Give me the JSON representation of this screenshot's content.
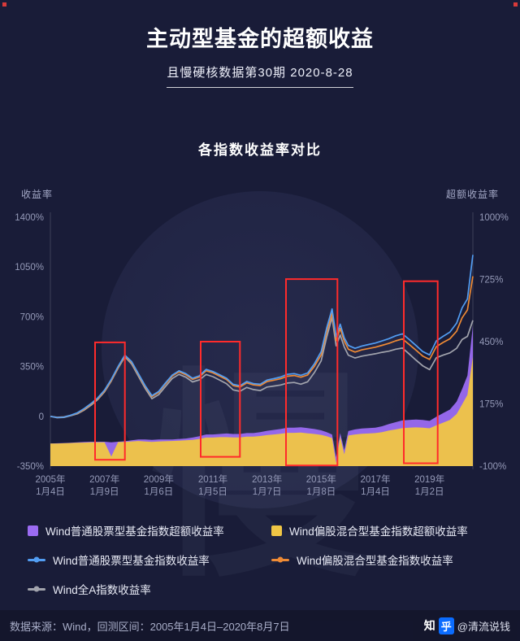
{
  "header": {
    "title": "主动型基金的超额收益",
    "subtitle": "且慢硬核数据第30期 2020-8-28"
  },
  "watermark": {
    "glyph": "慢"
  },
  "accents": {
    "corner_marker": "#d93a3a",
    "zhihu_blue": "#0b6cff"
  },
  "chart_data": {
    "type": "line",
    "title": "各指数收益率对比",
    "grid": false,
    "legend_position": "bottom",
    "x_range": [
      2005,
      2020.6
    ],
    "left_axis": {
      "title": "收益率",
      "unit": "%",
      "range": [
        -350,
        1400
      ],
      "ticks": [
        1400,
        1050,
        700,
        350,
        0,
        -350
      ]
    },
    "right_axis": {
      "title": "超额收益率",
      "unit": "%",
      "range": [
        -100,
        1000
      ],
      "ticks": [
        1000,
        725,
        450,
        175,
        -100
      ]
    },
    "area_baseline_right": -100,
    "x_ticks": [
      {
        "year": 2005,
        "label": [
          "2005年",
          "1月4日"
        ]
      },
      {
        "year": 2007,
        "label": [
          "2007年",
          "1月9日"
        ]
      },
      {
        "year": 2009,
        "label": [
          "2009年",
          "1月6日"
        ]
      },
      {
        "year": 2011,
        "label": [
          "2011年",
          "1月5日"
        ]
      },
      {
        "year": 2013,
        "label": [
          "2013年",
          "1月7日"
        ]
      },
      {
        "year": 2015,
        "label": [
          "2015年",
          "1月8日"
        ]
      },
      {
        "year": 2017,
        "label": [
          "2017年",
          "1月4日"
        ]
      },
      {
        "year": 2019,
        "label": [
          "2019年",
          "1月2日"
        ]
      }
    ],
    "x_years": [
      2005.0,
      2005.25,
      2005.5,
      2005.75,
      2006.0,
      2006.25,
      2006.5,
      2006.75,
      2007.0,
      2007.25,
      2007.5,
      2007.75,
      2008.0,
      2008.25,
      2008.5,
      2008.75,
      2009.0,
      2009.25,
      2009.5,
      2009.75,
      2010.0,
      2010.25,
      2010.5,
      2010.75,
      2011.0,
      2011.25,
      2011.5,
      2011.75,
      2012.0,
      2012.25,
      2012.5,
      2012.75,
      2013.0,
      2013.25,
      2013.5,
      2013.75,
      2014.0,
      2014.25,
      2014.5,
      2014.75,
      2015.0,
      2015.2,
      2015.4,
      2015.55,
      2015.7,
      2015.85,
      2016.0,
      2016.25,
      2016.5,
      2016.75,
      2017.0,
      2017.25,
      2017.5,
      2017.75,
      2018.0,
      2018.25,
      2018.5,
      2018.75,
      2019.0,
      2019.25,
      2019.5,
      2019.75,
      2020.0,
      2020.2,
      2020.4,
      2020.6
    ],
    "series": [
      {
        "name": "Wind普通股票型基金指数超额收益率",
        "type": "area",
        "axis": "right",
        "color": "#9b6bf2",
        "values": [
          0,
          1,
          2,
          3,
          5,
          7,
          8,
          8,
          8,
          5,
          8,
          10,
          14,
          18,
          18,
          16,
          18,
          18,
          18,
          20,
          22,
          26,
          32,
          40,
          40,
          42,
          44,
          42,
          42,
          46,
          46,
          50,
          56,
          60,
          64,
          70,
          70,
          72,
          68,
          64,
          58,
          50,
          40,
          -60,
          46,
          -28,
          55,
          62,
          66,
          68,
          70,
          76,
          86,
          94,
          102,
          104,
          106,
          104,
          100,
          118,
          134,
          150,
          185,
          240,
          300,
          520
        ]
      },
      {
        "name": "Wind偏股混合型基金指数超额收益率",
        "type": "area",
        "axis": "right",
        "color": "#f0c645",
        "values": [
          0,
          0,
          1,
          2,
          3,
          4,
          5,
          5,
          5,
          -58,
          6,
          7,
          9,
          11,
          9,
          7,
          9,
          10,
          11,
          12,
          14,
          16,
          20,
          26,
          26,
          28,
          28,
          27,
          27,
          30,
          30,
          33,
          37,
          40,
          43,
          47,
          47,
          48,
          45,
          42,
          38,
          32,
          24,
          -86,
          30,
          -48,
          35,
          40,
          43,
          44,
          46,
          50,
          57,
          62,
          68,
          70,
          71,
          70,
          67,
          80,
          92,
          104,
          130,
          172,
          215,
          382
        ]
      },
      {
        "name": "Wind全A指数收益率",
        "type": "line",
        "axis": "left",
        "color": "#a2a4ad",
        "values": [
          0,
          -10,
          -8,
          4,
          18,
          44,
          78,
          118,
          172,
          248,
          338,
          418,
          368,
          282,
          196,
          124,
          152,
          210,
          266,
          295,
          275,
          242,
          256,
          294,
          279,
          255,
          230,
          186,
          176,
          203,
          188,
          181,
          206,
          213,
          220,
          234,
          238,
          226,
          243,
          308,
          390,
          555,
          695,
          495,
          572,
          488,
          430,
          410,
          423,
          432,
          440,
          450,
          458,
          472,
          480,
          438,
          395,
          355,
          328,
          412,
          430,
          446,
          478,
          540,
          562,
          675
        ]
      },
      {
        "name": "Wind偏股混合型基金指数收益率",
        "type": "line",
        "axis": "left",
        "color": "#ee8a35",
        "values": [
          0,
          -7,
          -4,
          7,
          22,
          50,
          84,
          124,
          178,
          252,
          342,
          424,
          378,
          294,
          209,
          139,
          168,
          228,
          283,
          312,
          292,
          260,
          277,
          320,
          306,
          283,
          259,
          216,
          206,
          235,
          221,
          216,
          245,
          254,
          264,
          282,
          287,
          275,
          291,
          352,
          432,
          592,
          726,
          532,
          618,
          528,
          472,
          452,
          467,
          477,
          486,
          499,
          513,
          531,
          544,
          505,
          465,
          424,
          400,
          490,
          519,
          545,
          598,
          692,
          748,
          985
        ]
      },
      {
        "name": "Wind普通股票型基金指数收益率",
        "type": "line",
        "axis": "left",
        "color": "#529df2",
        "values": [
          0,
          -8,
          -5,
          8,
          25,
          55,
          90,
          130,
          185,
          260,
          350,
          430,
          385,
          300,
          215,
          145,
          175,
          235,
          290,
          320,
          300,
          268,
          285,
          330,
          315,
          292,
          268,
          225,
          215,
          245,
          230,
          226,
          255,
          265,
          276,
          295,
          300,
          288,
          305,
          370,
          455,
          620,
          755,
          560,
          648,
          552,
          498,
          478,
          494,
          505,
          515,
          530,
          546,
          566,
          580,
          540,
          498,
          455,
          432,
          530,
          562,
          592,
          655,
          762,
          825,
          1135
        ]
      }
    ],
    "highlight_color": "#ff2b2b",
    "highlight_boxes": [
      {
        "x0": 2006.65,
        "x1": 2007.75,
        "y0": -305,
        "y1": 520
      },
      {
        "x0": 2010.55,
        "x1": 2012.0,
        "y0": -285,
        "y1": 525
      },
      {
        "x0": 2013.7,
        "x1": 2015.6,
        "y0": -345,
        "y1": 965
      },
      {
        "x0": 2018.05,
        "x1": 2019.3,
        "y0": -330,
        "y1": 950
      }
    ]
  },
  "legend": {
    "items": [
      {
        "label": "Wind普通股票型基金指数超额收益率",
        "marker": "square",
        "color": "#9b6bf2"
      },
      {
        "label": "Wind偏股混合型基金指数超额收益率",
        "marker": "square",
        "color": "#f0c645"
      },
      {
        "label": "Wind普通股票型基金指数收益率",
        "marker": "line",
        "color": "#529df2"
      },
      {
        "label": "Wind偏股混合型基金指数收益率",
        "marker": "line",
        "color": "#ee8a35"
      },
      {
        "label": "Wind全A指数收益率",
        "marker": "line",
        "color": "#a2a4ad"
      }
    ]
  },
  "footer": {
    "source": "数据来源：Wind，回测区间：2005年1月4日–2020年8月7日",
    "zhihu_brand_first": "知",
    "zhihu_brand_second": "乎",
    "zhihu_handle": "@清流说钱"
  }
}
